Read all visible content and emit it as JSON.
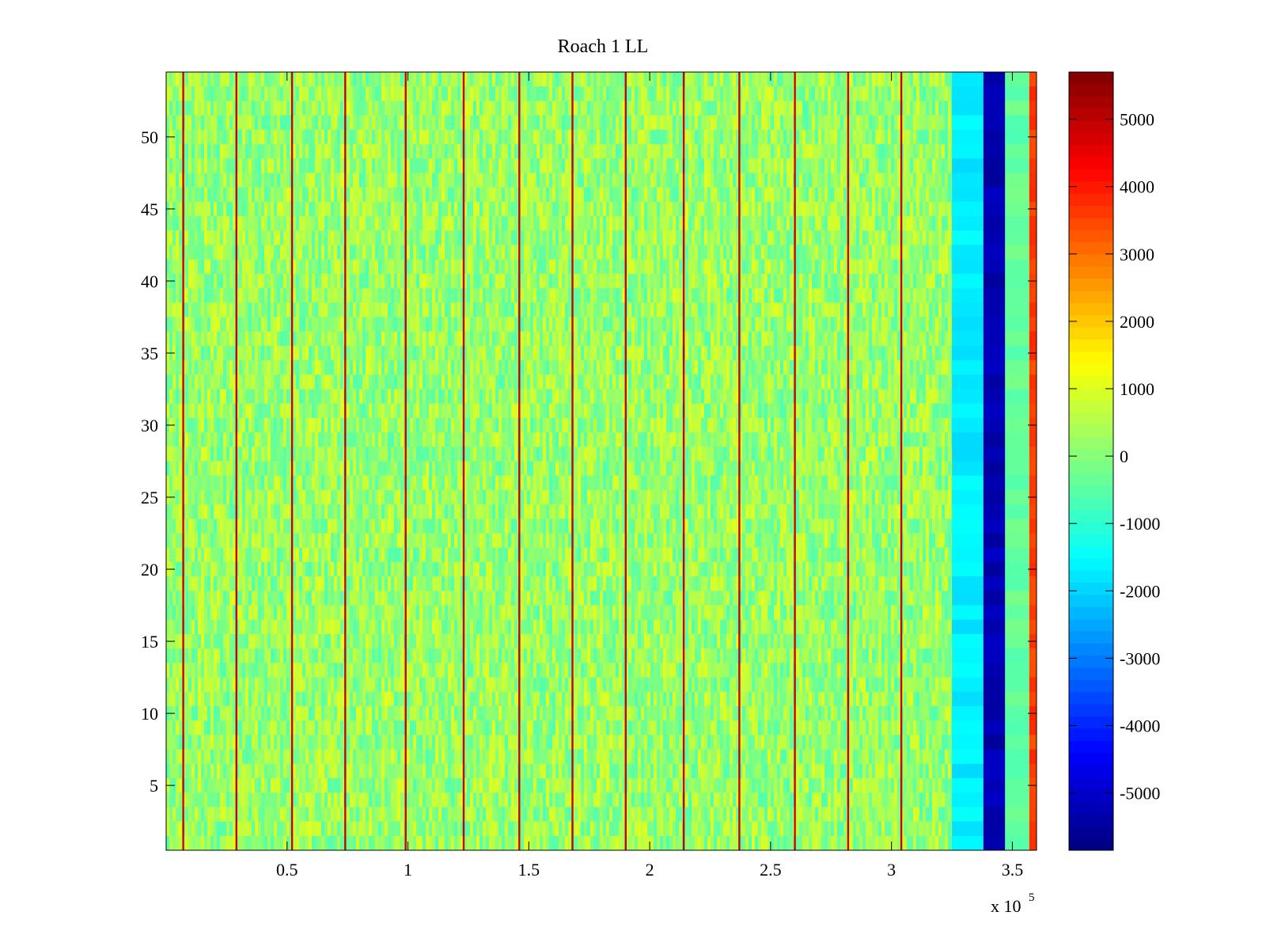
{
  "chart_data": {
    "type": "heatmap",
    "title": "Roach 1 LL",
    "xlabel": "",
    "ylabel": "",
    "x_range": [
      0,
      360000
    ],
    "y_range": [
      0.5,
      54.5
    ],
    "x_ticks": [
      50000,
      100000,
      150000,
      200000,
      250000,
      300000,
      350000
    ],
    "x_tick_labels": [
      "0.5",
      "1",
      "1.5",
      "2",
      "2.5",
      "3",
      "3.5"
    ],
    "x_exponent_label": "x 10",
    "x_exponent_power": "5",
    "y_ticks": [
      5,
      10,
      15,
      20,
      25,
      30,
      35,
      40,
      45,
      50
    ],
    "y_tick_labels": [
      "5",
      "10",
      "15",
      "20",
      "25",
      "30",
      "35",
      "40",
      "45",
      "50"
    ],
    "rows": 54,
    "colormap": "jet",
    "color_range": [
      -5850,
      5700
    ],
    "colorbar_ticks": [
      5000,
      4000,
      3000,
      2000,
      1000,
      0,
      -1000,
      -2000,
      -3000,
      -4000,
      -5000
    ],
    "colorbar_tick_labels": [
      "5000",
      "4000",
      "3000",
      "2000",
      "1000",
      "0",
      "-1000",
      "-2000",
      "-3000",
      "-4000",
      "-5000"
    ],
    "background_value_range": [
      -600,
      1000
    ],
    "bands": [
      {
        "x_start": 325000,
        "x_end": 338000,
        "value": -1700
      },
      {
        "x_start": 338000,
        "x_end": 347000,
        "value": -5300
      },
      {
        "x_start": 347000,
        "x_end": 357000,
        "value": -400
      },
      {
        "x_start": 357000,
        "x_end": 360000,
        "value": 3600
      }
    ],
    "spike_lines_x": [
      7000,
      29000,
      52000,
      74000,
      99000,
      123000,
      146000,
      168000,
      190000,
      214000,
      237000,
      260000,
      282000,
      304000
    ],
    "spike_value": 4800,
    "grid": false,
    "colorbar": "right"
  }
}
